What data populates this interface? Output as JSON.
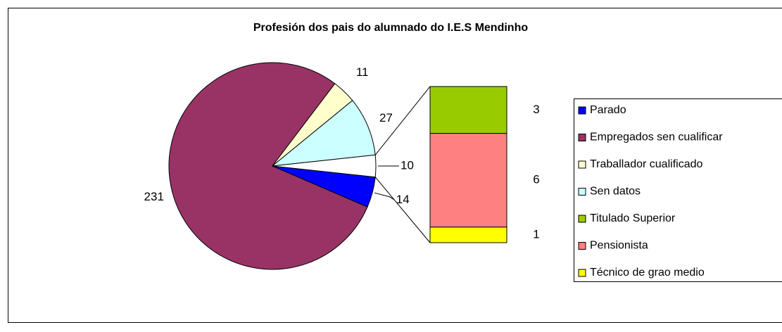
{
  "chart_data": {
    "type": "pie",
    "title": "Profesión dos pais do alumnado do I.E.S Mendinho",
    "pie": {
      "categories": [
        "Parado",
        "Empregados sen cualificar",
        "Traballador cualificado",
        "Sen datos",
        null
      ],
      "values": [
        14,
        231,
        11,
        27,
        10
      ],
      "colors": [
        "#0000ff",
        "#993366",
        "#ffffcc",
        "#ccffff",
        "#ffffff"
      ]
    },
    "bar": {
      "categories": [
        "Titulado Superior",
        "Pensionista",
        "Técnico de grao medio"
      ],
      "values": [
        3,
        6,
        1
      ],
      "colors": [
        "#99cc00",
        "#ff8080",
        "#ffff00"
      ]
    },
    "legend": "right"
  }
}
